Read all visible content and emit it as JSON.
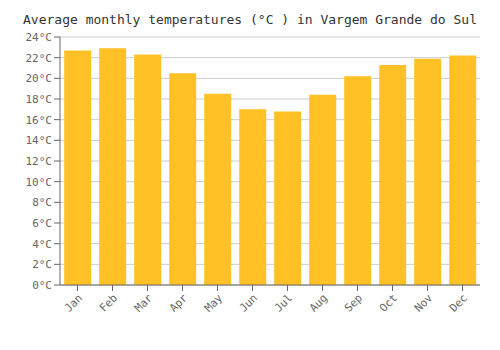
{
  "chart_data": {
    "type": "bar",
    "title": "Average monthly temperatures (°C ) in Vargem Grande do Sul",
    "categories": [
      "Jan",
      "Feb",
      "Mar",
      "Apr",
      "May",
      "Jun",
      "Jul",
      "Aug",
      "Sep",
      "Oct",
      "Nov",
      "Dec"
    ],
    "values": [
      22.7,
      22.9,
      22.3,
      20.5,
      18.5,
      17.0,
      16.8,
      18.4,
      20.2,
      21.3,
      21.9,
      22.2
    ],
    "color": "#FFC125",
    "ylim": [
      0,
      24
    ],
    "yticks": [
      {
        "value": 0,
        "label": "0°C"
      },
      {
        "value": 2,
        "label": "2°C"
      },
      {
        "value": 4,
        "label": "4°C"
      },
      {
        "value": 6,
        "label": "6°C"
      },
      {
        "value": 8,
        "label": "8°C"
      },
      {
        "value": 10,
        "label": "10°C"
      },
      {
        "value": 12,
        "label": "12°C"
      },
      {
        "value": 14,
        "label": "14°C"
      },
      {
        "value": 16,
        "label": "16°C"
      },
      {
        "value": 18,
        "label": "18°C"
      },
      {
        "value": 20,
        "label": "20°C"
      },
      {
        "value": 22,
        "label": "22°C"
      },
      {
        "value": 24,
        "label": "24°C"
      }
    ],
    "grid": true
  }
}
